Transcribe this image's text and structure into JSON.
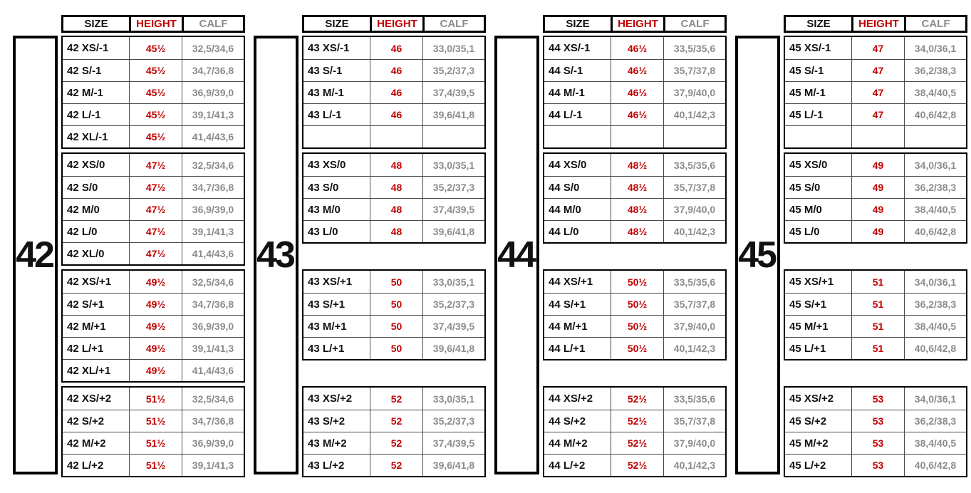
{
  "headers": {
    "size": "SIZE",
    "height": "HEIGHT",
    "calf": "CALF"
  },
  "colors": {
    "size_text": "#111111",
    "height_text": "#c00000",
    "calf_text": "#8c8c8c",
    "border": "#000000"
  },
  "groups": [
    {
      "label": "42",
      "blocks": [
        {
          "slots": 5,
          "empty_row": false,
          "rows": [
            {
              "size": "42 XS/-1",
              "height": "45½",
              "calf": "32,5/34,6"
            },
            {
              "size": "42 S/-1",
              "height": "45½",
              "calf": "34,7/36,8"
            },
            {
              "size": "42 M/-1",
              "height": "45½",
              "calf": "36,9/39,0"
            },
            {
              "size": "42 L/-1",
              "height": "45½",
              "calf": "39,1/41,3"
            },
            {
              "size": "42 XL/-1",
              "height": "45½",
              "calf": "41,4/43,6"
            }
          ]
        },
        {
          "slots": 5,
          "empty_row": false,
          "rows": [
            {
              "size": "42 XS/0",
              "height": "47½",
              "calf": "32,5/34,6"
            },
            {
              "size": "42 S/0",
              "height": "47½",
              "calf": "34,7/36,8"
            },
            {
              "size": "42 M/0",
              "height": "47½",
              "calf": "36,9/39,0"
            },
            {
              "size": "42 L/0",
              "height": "47½",
              "calf": "39,1/41,3"
            },
            {
              "size": "42 XL/0",
              "height": "47½",
              "calf": "41,4/43,6"
            }
          ]
        },
        {
          "slots": 5,
          "empty_row": false,
          "rows": [
            {
              "size": "42 XS/+1",
              "height": "49½",
              "calf": "32,5/34,6"
            },
            {
              "size": "42 S/+1",
              "height": "49½",
              "calf": "34,7/36,8"
            },
            {
              "size": "42 M/+1",
              "height": "49½",
              "calf": "36,9/39,0"
            },
            {
              "size": "42 L/+1",
              "height": "49½",
              "calf": "39,1/41,3"
            },
            {
              "size": "42 XL/+1",
              "height": "49½",
              "calf": "41,4/43,6"
            }
          ]
        },
        {
          "slots": 4,
          "empty_row": false,
          "rows": [
            {
              "size": "42 XS/+2",
              "height": "51½",
              "calf": "32,5/34,6"
            },
            {
              "size": "42 S/+2",
              "height": "51½",
              "calf": "34,7/36,8"
            },
            {
              "size": "42 M/+2",
              "height": "51½",
              "calf": "36,9/39,0"
            },
            {
              "size": "42 L/+2",
              "height": "51½",
              "calf": "39,1/41,3"
            }
          ]
        }
      ]
    },
    {
      "label": "43",
      "blocks": [
        {
          "slots": 5,
          "empty_row": true,
          "rows": [
            {
              "size": "43 XS/-1",
              "height": "46",
              "calf": "33,0/35,1"
            },
            {
              "size": "43 S/-1",
              "height": "46",
              "calf": "35,2/37,3"
            },
            {
              "size": "43 M/-1",
              "height": "46",
              "calf": "37,4/39,5"
            },
            {
              "size": "43 L/-1",
              "height": "46",
              "calf": "39,6/41,8"
            }
          ]
        },
        {
          "slots": 5,
          "empty_row": false,
          "rows": [
            {
              "size": "43 XS/0",
              "height": "48",
              "calf": "33,0/35,1"
            },
            {
              "size": "43 S/0",
              "height": "48",
              "calf": "35,2/37,3"
            },
            {
              "size": "43 M/0",
              "height": "48",
              "calf": "37,4/39,5"
            },
            {
              "size": "43 L/0",
              "height": "48",
              "calf": "39,6/41,8"
            }
          ]
        },
        {
          "slots": 5,
          "empty_row": false,
          "rows": [
            {
              "size": "43 XS/+1",
              "height": "50",
              "calf": "33,0/35,1"
            },
            {
              "size": "43 S/+1",
              "height": "50",
              "calf": "35,2/37,3"
            },
            {
              "size": "43 M/+1",
              "height": "50",
              "calf": "37,4/39,5"
            },
            {
              "size": "43 L/+1",
              "height": "50",
              "calf": "39,6/41,8"
            }
          ]
        },
        {
          "slots": 4,
          "empty_row": false,
          "rows": [
            {
              "size": "43 XS/+2",
              "height": "52",
              "calf": "33,0/35,1"
            },
            {
              "size": "43 S/+2",
              "height": "52",
              "calf": "35,2/37,3"
            },
            {
              "size": "43 M/+2",
              "height": "52",
              "calf": "37,4/39,5"
            },
            {
              "size": "43 L/+2",
              "height": "52",
              "calf": "39,6/41,8"
            }
          ]
        }
      ]
    },
    {
      "label": "44",
      "blocks": [
        {
          "slots": 5,
          "empty_row": true,
          "rows": [
            {
              "size": "44 XS/-1",
              "height": "46½",
              "calf": "33,5/35,6"
            },
            {
              "size": "44 S/-1",
              "height": "46½",
              "calf": "35,7/37,8"
            },
            {
              "size": "44 M/-1",
              "height": "46½",
              "calf": "37,9/40,0"
            },
            {
              "size": "44 L/-1",
              "height": "46½",
              "calf": "40,1/42,3"
            }
          ]
        },
        {
          "slots": 5,
          "empty_row": false,
          "rows": [
            {
              "size": "44 XS/0",
              "height": "48½",
              "calf": "33,5/35,6"
            },
            {
              "size": "44 S/0",
              "height": "48½",
              "calf": "35,7/37,8"
            },
            {
              "size": "44 M/0",
              "height": "48½",
              "calf": "37,9/40,0"
            },
            {
              "size": "44 L/0",
              "height": "48½",
              "calf": "40,1/42,3"
            }
          ]
        },
        {
          "slots": 5,
          "empty_row": false,
          "rows": [
            {
              "size": "44 XS/+1",
              "height": "50½",
              "calf": "33,5/35,6"
            },
            {
              "size": "44 S/+1",
              "height": "50½",
              "calf": "35,7/37,8"
            },
            {
              "size": "44 M/+1",
              "height": "50½",
              "calf": "37,9/40,0"
            },
            {
              "size": "44 L/+1",
              "height": "50½",
              "calf": "40,1/42,3"
            }
          ]
        },
        {
          "slots": 4,
          "empty_row": false,
          "rows": [
            {
              "size": "44 XS/+2",
              "height": "52½",
              "calf": "33,5/35,6"
            },
            {
              "size": "44 S/+2",
              "height": "52½",
              "calf": "35,7/37,8"
            },
            {
              "size": "44 M/+2",
              "height": "52½",
              "calf": "37,9/40,0"
            },
            {
              "size": "44 L/+2",
              "height": "52½",
              "calf": "40,1/42,3"
            }
          ]
        }
      ]
    },
    {
      "label": "45",
      "blocks": [
        {
          "slots": 5,
          "empty_row": true,
          "rows": [
            {
              "size": "45 XS/-1",
              "height": "47",
              "calf": "34,0/36,1"
            },
            {
              "size": "45 S/-1",
              "height": "47",
              "calf": "36,2/38,3"
            },
            {
              "size": "45 M/-1",
              "height": "47",
              "calf": "38,4/40,5"
            },
            {
              "size": "45 L/-1",
              "height": "47",
              "calf": "40,6/42,8"
            }
          ]
        },
        {
          "slots": 5,
          "empty_row": false,
          "rows": [
            {
              "size": "45 XS/0",
              "height": "49",
              "calf": "34,0/36,1"
            },
            {
              "size": "45 S/0",
              "height": "49",
              "calf": "36,2/38,3"
            },
            {
              "size": "45 M/0",
              "height": "49",
              "calf": "38,4/40,5"
            },
            {
              "size": "45 L/0",
              "height": "49",
              "calf": "40,6/42,8"
            }
          ]
        },
        {
          "slots": 5,
          "empty_row": false,
          "rows": [
            {
              "size": "45 XS/+1",
              "height": "51",
              "calf": "34,0/36,1"
            },
            {
              "size": "45 S/+1",
              "height": "51",
              "calf": "36,2/38,3"
            },
            {
              "size": "45 M/+1",
              "height": "51",
              "calf": "38,4/40,5"
            },
            {
              "size": "45 L/+1",
              "height": "51",
              "calf": "40,6/42,8"
            }
          ]
        },
        {
          "slots": 4,
          "empty_row": false,
          "rows": [
            {
              "size": "45 XS/+2",
              "height": "53",
              "calf": "34,0/36,1"
            },
            {
              "size": "45 S/+2",
              "height": "53",
              "calf": "36,2/38,3"
            },
            {
              "size": "45 M/+2",
              "height": "53",
              "calf": "38,4/40,5"
            },
            {
              "size": "45 L/+2",
              "height": "53",
              "calf": "40,6/42,8"
            }
          ]
        }
      ]
    }
  ]
}
